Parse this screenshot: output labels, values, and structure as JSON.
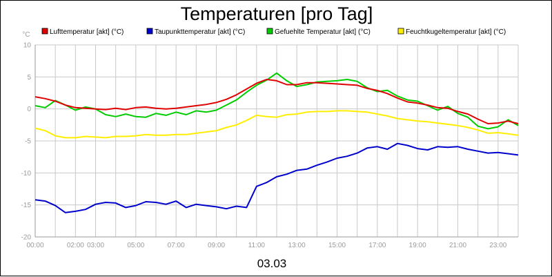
{
  "chart_data": {
    "type": "line",
    "title": "Temperaturen [pro Tag]",
    "date_label": "03.03",
    "y_unit": "°C",
    "ylim": [
      -20,
      10
    ],
    "y_ticks": [
      10,
      5,
      0,
      -5,
      -10,
      -15,
      -20
    ],
    "xlim": [
      0,
      24
    ],
    "x_ticks": [
      {
        "h": 0,
        "label": "00:00"
      },
      {
        "h": 2,
        "label": "02:00"
      },
      {
        "h": 3,
        "label": "03:00"
      },
      {
        "h": 5,
        "label": "05:00"
      },
      {
        "h": 7,
        "label": "07:00"
      },
      {
        "h": 9,
        "label": "09:00"
      },
      {
        "h": 11,
        "label": "11:00"
      },
      {
        "h": 13,
        "label": "13:00"
      },
      {
        "h": 15,
        "label": "15:00"
      },
      {
        "h": 17,
        "label": "17:00"
      },
      {
        "h": 19,
        "label": "19:00"
      },
      {
        "h": 21,
        "label": "21:00"
      },
      {
        "h": 23,
        "label": "23:00"
      }
    ],
    "grid": true,
    "legend_position": "top",
    "series": [
      {
        "name": "Lufttemperatur [akt] (°C)",
        "color": "#e00000",
        "points": [
          [
            0,
            1.9
          ],
          [
            0.5,
            1.6
          ],
          [
            1,
            1.2
          ],
          [
            1.5,
            0.6
          ],
          [
            2,
            0.2
          ],
          [
            2.5,
            0.1
          ],
          [
            3,
            0.0
          ],
          [
            3.5,
            -0.1
          ],
          [
            4,
            0.1
          ],
          [
            4.5,
            -0.1
          ],
          [
            5,
            0.2
          ],
          [
            5.5,
            0.3
          ],
          [
            6,
            0.1
          ],
          [
            6.5,
            0.0
          ],
          [
            7,
            0.1
          ],
          [
            7.5,
            0.3
          ],
          [
            8,
            0.5
          ],
          [
            8.5,
            0.7
          ],
          [
            9,
            1.0
          ],
          [
            9.5,
            1.5
          ],
          [
            10,
            2.2
          ],
          [
            10.5,
            3.1
          ],
          [
            11,
            4.0
          ],
          [
            11.5,
            4.6
          ],
          [
            12,
            4.4
          ],
          [
            12.5,
            3.8
          ],
          [
            13,
            3.8
          ],
          [
            13.5,
            4.1
          ],
          [
            14,
            4.1
          ],
          [
            14.5,
            4.0
          ],
          [
            15,
            3.9
          ],
          [
            15.5,
            3.8
          ],
          [
            16,
            3.7
          ],
          [
            16.5,
            3.2
          ],
          [
            17,
            2.9
          ],
          [
            17.5,
            2.4
          ],
          [
            18,
            1.7
          ],
          [
            18.5,
            1.1
          ],
          [
            19,
            0.9
          ],
          [
            19.5,
            0.6
          ],
          [
            20,
            0.2
          ],
          [
            20.5,
            0.1
          ],
          [
            21,
            -0.4
          ],
          [
            21.5,
            -0.8
          ],
          [
            22,
            -1.6
          ],
          [
            22.5,
            -2.3
          ],
          [
            23,
            -2.2
          ],
          [
            23.5,
            -1.9
          ],
          [
            24,
            -2.3
          ]
        ]
      },
      {
        "name": "Taupunkttemperatur [akt] (°C)",
        "color": "#0000cc",
        "points": [
          [
            0,
            -14.2
          ],
          [
            0.5,
            -14.4
          ],
          [
            1,
            -15.1
          ],
          [
            1.5,
            -16.2
          ],
          [
            2,
            -16.0
          ],
          [
            2.5,
            -15.7
          ],
          [
            3,
            -14.9
          ],
          [
            3.5,
            -14.6
          ],
          [
            4,
            -14.7
          ],
          [
            4.5,
            -15.4
          ],
          [
            5,
            -15.1
          ],
          [
            5.5,
            -14.5
          ],
          [
            6,
            -14.6
          ],
          [
            6.5,
            -14.9
          ],
          [
            7,
            -14.4
          ],
          [
            7.5,
            -15.4
          ],
          [
            8,
            -14.9
          ],
          [
            8.5,
            -15.1
          ],
          [
            9,
            -15.3
          ],
          [
            9.5,
            -15.6
          ],
          [
            10,
            -15.2
          ],
          [
            10.5,
            -15.4
          ],
          [
            11,
            -12.1
          ],
          [
            11.5,
            -11.5
          ],
          [
            12,
            -10.6
          ],
          [
            12.5,
            -10.2
          ],
          [
            13,
            -9.6
          ],
          [
            13.5,
            -9.4
          ],
          [
            14,
            -8.8
          ],
          [
            14.5,
            -8.3
          ],
          [
            15,
            -7.7
          ],
          [
            15.5,
            -7.4
          ],
          [
            16,
            -6.9
          ],
          [
            16.5,
            -6.1
          ],
          [
            17,
            -5.9
          ],
          [
            17.5,
            -6.3
          ],
          [
            18,
            -5.4
          ],
          [
            18.5,
            -5.7
          ],
          [
            19,
            -6.2
          ],
          [
            19.5,
            -6.4
          ],
          [
            20,
            -5.9
          ],
          [
            20.5,
            -6.0
          ],
          [
            21,
            -5.9
          ],
          [
            21.5,
            -6.3
          ],
          [
            22,
            -6.6
          ],
          [
            22.5,
            -6.9
          ],
          [
            23,
            -6.8
          ],
          [
            23.5,
            -7.0
          ],
          [
            24,
            -7.2
          ]
        ]
      },
      {
        "name": "Gefuehlte Temperatur [akt] (°C)",
        "color": "#00cc00",
        "points": [
          [
            0,
            0.5
          ],
          [
            0.5,
            0.2
          ],
          [
            1,
            1.3
          ],
          [
            1.5,
            0.6
          ],
          [
            2,
            -0.2
          ],
          [
            2.5,
            0.3
          ],
          [
            3,
            0.0
          ],
          [
            3.5,
            -0.9
          ],
          [
            4,
            -1.2
          ],
          [
            4.5,
            -0.8
          ],
          [
            5,
            -1.2
          ],
          [
            5.5,
            -1.3
          ],
          [
            6,
            -0.7
          ],
          [
            6.5,
            -1.0
          ],
          [
            7,
            -0.5
          ],
          [
            7.5,
            -0.9
          ],
          [
            8,
            -0.3
          ],
          [
            8.5,
            -0.5
          ],
          [
            9,
            -0.2
          ],
          [
            9.5,
            0.6
          ],
          [
            10,
            1.4
          ],
          [
            10.5,
            2.6
          ],
          [
            11,
            3.7
          ],
          [
            11.5,
            4.5
          ],
          [
            12,
            5.6
          ],
          [
            12.5,
            4.4
          ],
          [
            13,
            3.5
          ],
          [
            13.5,
            3.8
          ],
          [
            14,
            4.2
          ],
          [
            14.5,
            4.3
          ],
          [
            15,
            4.4
          ],
          [
            15.5,
            4.6
          ],
          [
            16,
            4.3
          ],
          [
            16.5,
            3.3
          ],
          [
            17,
            2.7
          ],
          [
            17.5,
            2.9
          ],
          [
            18,
            2.0
          ],
          [
            18.5,
            1.4
          ],
          [
            19,
            1.2
          ],
          [
            19.5,
            0.5
          ],
          [
            20,
            -0.2
          ],
          [
            20.5,
            0.4
          ],
          [
            21,
            -0.7
          ],
          [
            21.5,
            -1.3
          ],
          [
            22,
            -2.7
          ],
          [
            22.5,
            -3.1
          ],
          [
            23,
            -2.8
          ],
          [
            23.5,
            -1.7
          ],
          [
            24,
            -2.6
          ]
        ]
      },
      {
        "name": "Feuchtkugeltemperatur [akt] (°C)",
        "color": "#ffee00",
        "points": [
          [
            0,
            -3.0
          ],
          [
            0.5,
            -3.4
          ],
          [
            1,
            -4.2
          ],
          [
            1.5,
            -4.5
          ],
          [
            2,
            -4.5
          ],
          [
            2.5,
            -4.3
          ],
          [
            3,
            -4.4
          ],
          [
            3.5,
            -4.5
          ],
          [
            4,
            -4.3
          ],
          [
            4.5,
            -4.3
          ],
          [
            5,
            -4.2
          ],
          [
            5.5,
            -4.0
          ],
          [
            6,
            -4.1
          ],
          [
            6.5,
            -4.1
          ],
          [
            7,
            -4.0
          ],
          [
            7.5,
            -4.0
          ],
          [
            8,
            -3.8
          ],
          [
            8.5,
            -3.6
          ],
          [
            9,
            -3.4
          ],
          [
            9.5,
            -2.9
          ],
          [
            10,
            -2.5
          ],
          [
            10.5,
            -1.8
          ],
          [
            11,
            -1.0
          ],
          [
            11.5,
            -1.2
          ],
          [
            12,
            -1.3
          ],
          [
            12.5,
            -0.9
          ],
          [
            13,
            -0.8
          ],
          [
            13.5,
            -0.5
          ],
          [
            14,
            -0.4
          ],
          [
            14.5,
            -0.4
          ],
          [
            15,
            -0.3
          ],
          [
            15.5,
            -0.3
          ],
          [
            16,
            -0.4
          ],
          [
            16.5,
            -0.5
          ],
          [
            17,
            -0.8
          ],
          [
            17.5,
            -1.1
          ],
          [
            18,
            -1.5
          ],
          [
            18.5,
            -1.7
          ],
          [
            19,
            -1.9
          ],
          [
            19.5,
            -2.0
          ],
          [
            20,
            -2.2
          ],
          [
            20.5,
            -2.4
          ],
          [
            21,
            -2.6
          ],
          [
            21.5,
            -2.9
          ],
          [
            22,
            -3.3
          ],
          [
            22.5,
            -3.8
          ],
          [
            23,
            -3.7
          ],
          [
            23.5,
            -3.9
          ],
          [
            24,
            -4.1
          ]
        ]
      }
    ]
  }
}
